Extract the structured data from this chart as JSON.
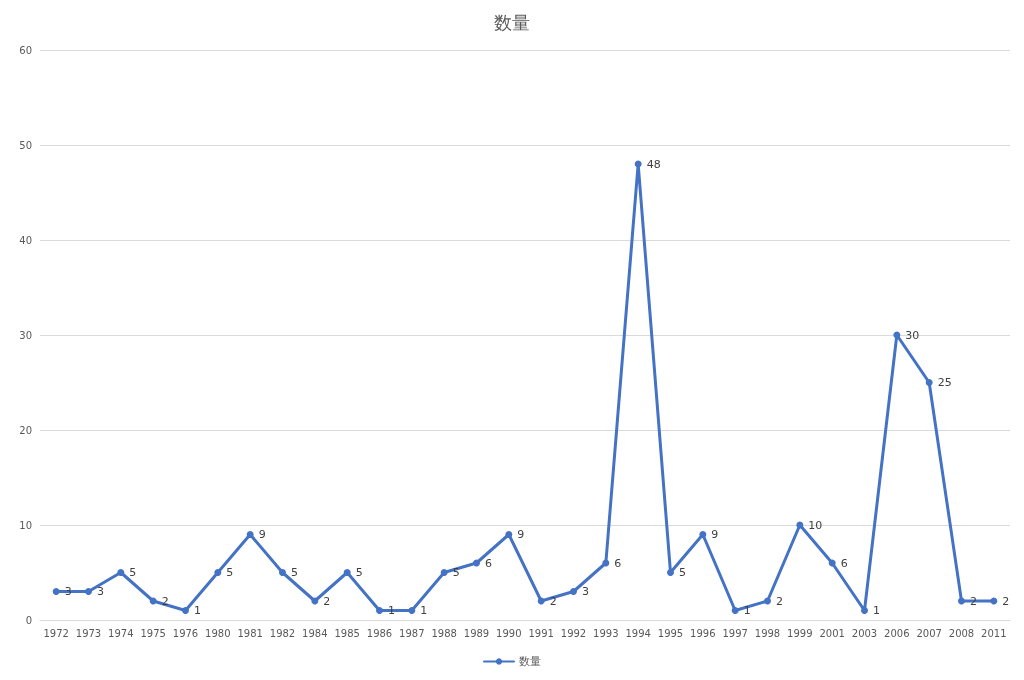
{
  "chart_data": {
    "type": "line",
    "title": "数量",
    "categories": [
      "1972",
      "1973",
      "1974",
      "1975",
      "1976",
      "1980",
      "1981",
      "1982",
      "1984",
      "1985",
      "1986",
      "1987",
      "1988",
      "1989",
      "1990",
      "1991",
      "1992",
      "1993",
      "1994",
      "1995",
      "1996",
      "1997",
      "1998",
      "1999",
      "2001",
      "2003",
      "2006",
      "2007",
      "2008",
      "2011"
    ],
    "series": [
      {
        "name": "数量",
        "color": "#4472c4",
        "values": [
          3,
          3,
          5,
          2,
          1,
          5,
          9,
          5,
          2,
          5,
          1,
          1,
          5,
          6,
          9,
          2,
          3,
          6,
          48,
          5,
          9,
          1,
          2,
          10,
          6,
          1,
          30,
          25,
          2,
          2
        ]
      }
    ],
    "ylim": [
      0,
      60
    ],
    "yticks": [
      0,
      10,
      20,
      30,
      40,
      50,
      60
    ],
    "grid": "y",
    "legend": "bottom",
    "marker": "circle",
    "line_style": "solid",
    "data_labels": true
  }
}
